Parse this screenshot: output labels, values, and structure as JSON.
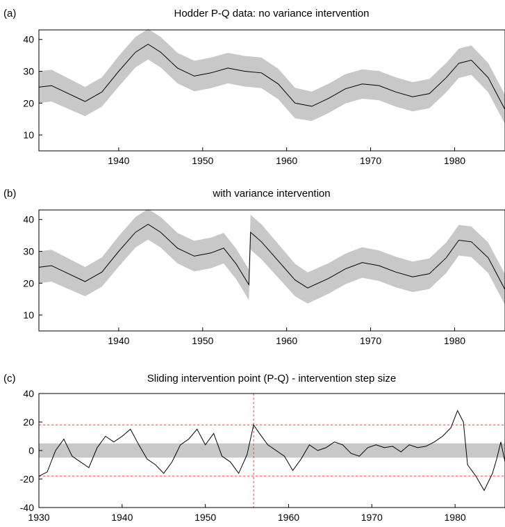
{
  "chart_data": [
    {
      "type": "area",
      "panel_label": "(a)",
      "title": "Hodder P-Q data: no variance intervention",
      "xlabel": "",
      "ylabel": "",
      "xlim": [
        1930.5,
        1986
      ],
      "ylim": [
        5,
        43
      ],
      "xticks": [
        1940,
        1950,
        1960,
        1970,
        1980
      ],
      "yticks": [
        10,
        20,
        30,
        40
      ],
      "grid": false,
      "series": [
        {
          "role": "mean",
          "x": [
            1930.5,
            1932,
            1934,
            1936,
            1938,
            1940,
            1942,
            1943.5,
            1945,
            1947,
            1949,
            1951,
            1953,
            1955,
            1957,
            1959,
            1961,
            1963,
            1965,
            1967,
            1969,
            1971,
            1973,
            1975,
            1977,
            1979,
            1980.5,
            1982,
            1984,
            1986
          ],
          "y": [
            25,
            25.5,
            23,
            20.5,
            23.5,
            30,
            36,
            38.5,
            36,
            31,
            28.5,
            29.5,
            31,
            30,
            29.5,
            26,
            20,
            19,
            21.5,
            24.5,
            26,
            25.5,
            23.5,
            22,
            23,
            28,
            32.5,
            33.5,
            28,
            18
          ]
        }
      ],
      "band_halfwidth": [
        5,
        5,
        4.8,
        4.6,
        4.6,
        4.8,
        4.8,
        4.8,
        4.8,
        4.8,
        4.8,
        4.8,
        4.8,
        4.8,
        4.8,
        4.8,
        4.8,
        4.6,
        4.6,
        4.6,
        4.6,
        4.6,
        4.6,
        4.6,
        4.6,
        4.6,
        4.6,
        4.6,
        4.6,
        4.6
      ]
    },
    {
      "type": "area",
      "panel_label": "(b)",
      "title": "with variance intervention",
      "xlabel": "",
      "ylabel": "",
      "xlim": [
        1930.5,
        1986
      ],
      "ylim": [
        5,
        43
      ],
      "xticks": [
        1940,
        1950,
        1960,
        1970,
        1980
      ],
      "yticks": [
        10,
        20,
        30,
        40
      ],
      "grid": false,
      "series": [
        {
          "role": "mean",
          "x": [
            1930.5,
            1932,
            1934,
            1936,
            1938,
            1940,
            1942,
            1943.5,
            1945,
            1947,
            1949,
            1951,
            1952.5,
            1954,
            1955.5,
            1955.7,
            1957,
            1959,
            1961,
            1962.5,
            1965,
            1967,
            1969,
            1971,
            1973,
            1975,
            1977,
            1979,
            1980.5,
            1982,
            1984,
            1986
          ],
          "y": [
            25,
            25.5,
            23,
            20.5,
            23.5,
            30,
            36,
            38.5,
            36,
            31,
            28.5,
            29.5,
            31,
            26,
            19.5,
            36,
            33,
            27,
            21,
            18.5,
            21.5,
            24.5,
            26.5,
            25.5,
            23.5,
            22,
            23,
            28,
            33.5,
            33,
            28,
            18
          ]
        }
      ],
      "band_halfwidth": [
        5,
        5,
        4.8,
        4.6,
        4.6,
        4.8,
        4.8,
        4.8,
        4.8,
        4.8,
        4.8,
        4.8,
        4.8,
        4.8,
        4.8,
        5.5,
        5.5,
        5.3,
        5.1,
        4.9,
        4.8,
        4.8,
        4.8,
        4.8,
        4.8,
        4.8,
        4.8,
        4.8,
        4.8,
        4.8,
        4.8,
        4.8
      ]
    },
    {
      "type": "line",
      "panel_label": "(c)",
      "title": "Sliding intervention point (P-Q) - intervention step size",
      "xlabel": "",
      "ylabel": "",
      "xlim": [
        1930,
        1986
      ],
      "ylim": [
        -40,
        40
      ],
      "xticks": [
        1930,
        1940,
        1950,
        1960,
        1970,
        1980
      ],
      "yticks": [
        -40,
        -20,
        0,
        20,
        40
      ],
      "grid": false,
      "band": {
        "ymin": -5,
        "ymax": 5
      },
      "hlines": [
        18,
        -18
      ],
      "vline": 1955.8,
      "series": [
        {
          "role": "step-size",
          "x": [
            1930,
            1931,
            1932,
            1933,
            1934,
            1935,
            1936,
            1937,
            1938,
            1939,
            1940,
            1941,
            1942,
            1943,
            1944,
            1945,
            1946,
            1947,
            1948,
            1949,
            1950,
            1951,
            1952,
            1953,
            1954,
            1955,
            1955.8,
            1956.5,
            1957.5,
            1958.5,
            1959.5,
            1960.5,
            1961.5,
            1962.5,
            1963.5,
            1964.5,
            1965.5,
            1966.5,
            1967.5,
            1968.5,
            1969.5,
            1970.5,
            1971.5,
            1972.5,
            1973.5,
            1974.5,
            1975.5,
            1976.5,
            1977.5,
            1978.5,
            1979.5,
            1980.3,
            1981,
            1981.5,
            1982.5,
            1983.5,
            1984.5,
            1985,
            1985.5,
            1986
          ],
          "y": [
            -18,
            -15,
            0,
            8,
            -4,
            -8,
            -12,
            2,
            10,
            6,
            10,
            15,
            4,
            -6,
            -10,
            -16,
            -8,
            4,
            8,
            15,
            4,
            12,
            -4,
            -8,
            -16,
            -3,
            18,
            12,
            4,
            0,
            -4,
            -14,
            -6,
            4,
            0,
            2,
            6,
            4,
            -2,
            -4,
            2,
            4,
            2,
            3,
            -1,
            4,
            2,
            3,
            6,
            10,
            16,
            28,
            20,
            -10,
            -18,
            -28,
            -16,
            -6,
            6,
            -8
          ]
        }
      ]
    }
  ]
}
